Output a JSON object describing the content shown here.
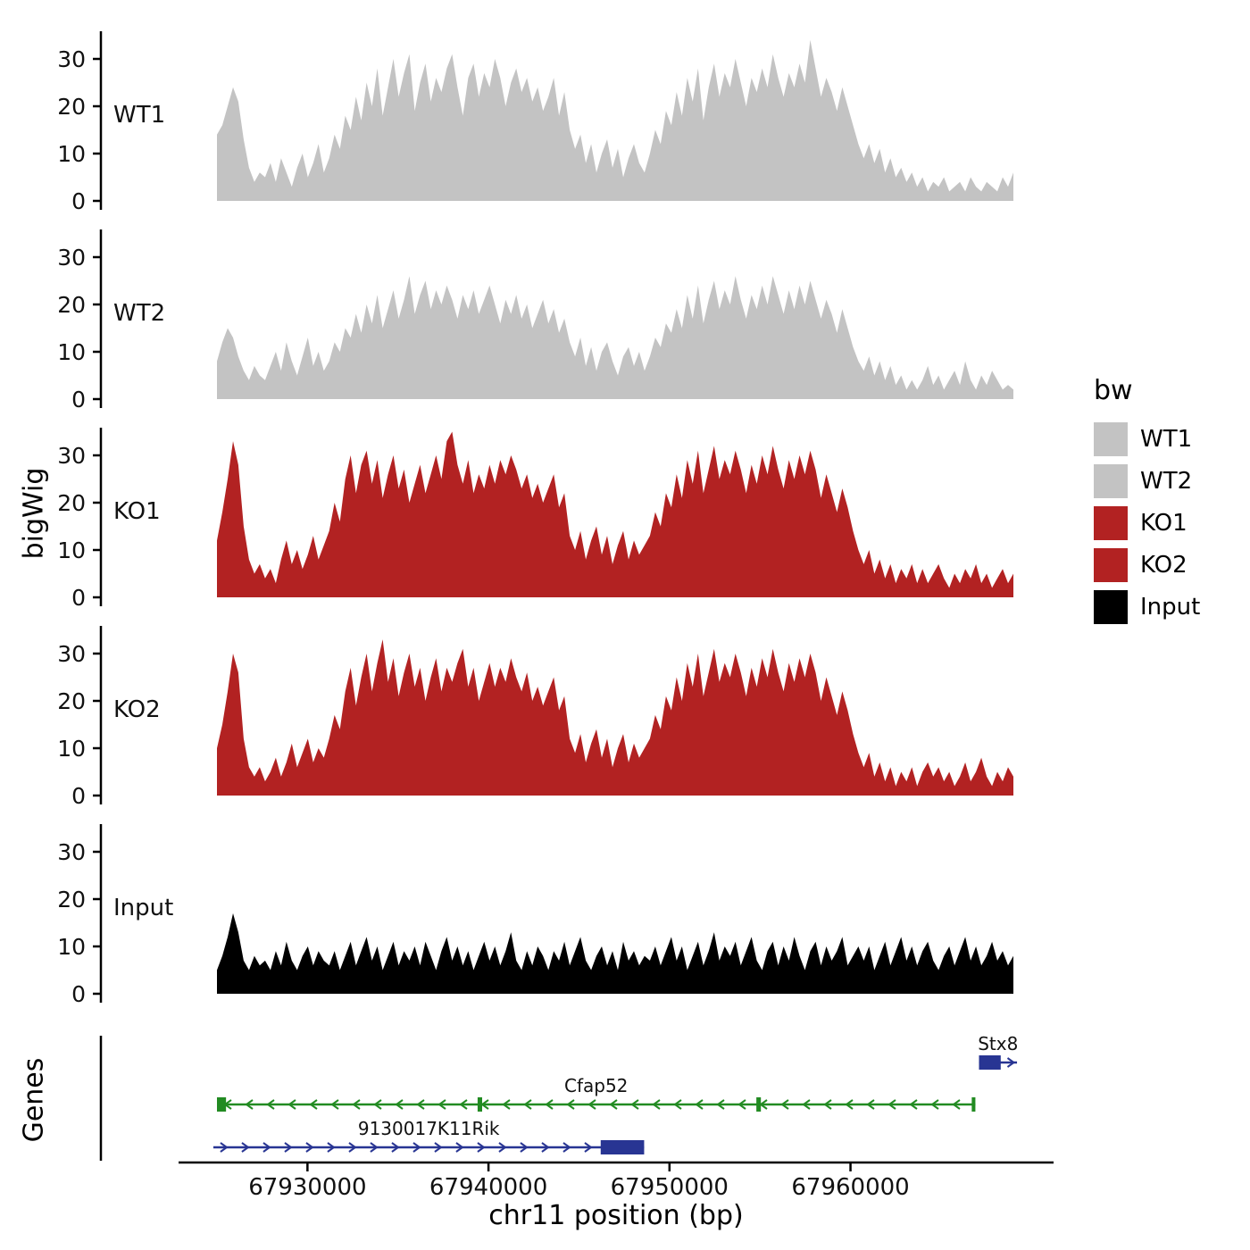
{
  "figure": {
    "y_axis_title": "bigWig",
    "genes_axis_title": "Genes",
    "x_axis_title": "chr11 position (bp)",
    "y_ticks": [
      0,
      10,
      20,
      30
    ],
    "x_ticks": [
      {
        "bp": 67930000,
        "label": "67930000"
      },
      {
        "bp": 67940000,
        "label": "67940000"
      },
      {
        "bp": 67950000,
        "label": "67950000"
      },
      {
        "bp": 67960000,
        "label": "67960000"
      }
    ]
  },
  "legend": {
    "title": "bw",
    "entries": [
      {
        "label": "WT1",
        "color": "#C3C3C3"
      },
      {
        "label": "WT2",
        "color": "#C3C3C3"
      },
      {
        "label": "KO1",
        "color": "#B22222"
      },
      {
        "label": "KO2",
        "color": "#B22222"
      },
      {
        "label": "Input",
        "color": "#000000"
      }
    ]
  },
  "chart_data": {
    "type": "area",
    "title": "",
    "xlabel": "chr11 position (bp)",
    "ylabel": "bigWig",
    "x_start": 67925000,
    "x_end": 67969000,
    "ylim": [
      0,
      35
    ],
    "x_ticks": [
      67930000,
      67940000,
      67950000,
      67960000
    ],
    "tracks": [
      {
        "name": "WT1",
        "color": "#C3C3C3",
        "values": [
          14,
          16,
          20,
          24,
          21,
          13,
          7,
          4,
          6,
          5,
          8,
          4,
          9,
          6,
          3,
          7,
          10,
          5,
          8,
          12,
          6,
          9,
          14,
          11,
          18,
          15,
          22,
          17,
          25,
          20,
          28,
          18,
          24,
          30,
          22,
          27,
          31,
          19,
          25,
          29,
          21,
          26,
          23,
          28,
          31,
          24,
          18,
          26,
          29,
          22,
          27,
          24,
          30,
          26,
          20,
          25,
          28,
          23,
          26,
          21,
          24,
          19,
          22,
          26,
          18,
          23,
          15,
          11,
          14,
          8,
          12,
          6,
          10,
          13,
          7,
          11,
          5,
          9,
          12,
          8,
          6,
          10,
          15,
          12,
          19,
          16,
          23,
          18,
          26,
          21,
          28,
          17,
          24,
          29,
          22,
          27,
          24,
          30,
          25,
          20,
          26,
          23,
          28,
          24,
          31,
          26,
          22,
          27,
          24,
          29,
          25,
          34,
          28,
          22,
          26,
          23,
          19,
          24,
          20,
          16,
          12,
          9,
          12,
          8,
          11,
          6,
          9,
          5,
          7,
          4,
          6,
          3,
          5,
          2,
          4,
          3,
          5,
          2,
          3,
          4,
          2,
          5,
          3,
          2,
          4,
          3,
          2,
          5,
          3,
          6
        ]
      },
      {
        "name": "WT2",
        "color": "#C3C3C3",
        "values": [
          8,
          12,
          15,
          13,
          9,
          6,
          4,
          7,
          5,
          4,
          7,
          10,
          6,
          12,
          8,
          5,
          9,
          13,
          7,
          10,
          6,
          8,
          12,
          10,
          15,
          13,
          18,
          14,
          20,
          16,
          22,
          15,
          19,
          23,
          17,
          21,
          26,
          18,
          22,
          25,
          19,
          23,
          20,
          24,
          21,
          17,
          22,
          19,
          23,
          18,
          21,
          24,
          20,
          16,
          21,
          18,
          22,
          17,
          20,
          15,
          18,
          21,
          16,
          19,
          14,
          17,
          12,
          9,
          13,
          7,
          11,
          6,
          10,
          12,
          8,
          5,
          9,
          11,
          7,
          10,
          6,
          9,
          13,
          11,
          16,
          14,
          19,
          15,
          22,
          17,
          24,
          16,
          21,
          25,
          19,
          23,
          20,
          26,
          21,
          17,
          22,
          19,
          24,
          20,
          26,
          22,
          18,
          23,
          19,
          24,
          20,
          25,
          21,
          17,
          21,
          18,
          14,
          19,
          15,
          11,
          8,
          6,
          9,
          5,
          8,
          4,
          7,
          3,
          5,
          2,
          4,
          2,
          4,
          7,
          3,
          5,
          2,
          4,
          6,
          3,
          8,
          4,
          2,
          5,
          3,
          6,
          4,
          2,
          3,
          2
        ]
      },
      {
        "name": "KO1",
        "color": "#B22222",
        "values": [
          12,
          18,
          25,
          33,
          28,
          15,
          8,
          5,
          7,
          4,
          6,
          3,
          8,
          12,
          7,
          10,
          6,
          9,
          13,
          8,
          11,
          14,
          20,
          16,
          25,
          30,
          22,
          28,
          31,
          24,
          29,
          21,
          26,
          30,
          23,
          27,
          20,
          24,
          28,
          22,
          26,
          30,
          25,
          33,
          35,
          28,
          24,
          29,
          22,
          26,
          23,
          28,
          24,
          29,
          26,
          30,
          27,
          23,
          26,
          21,
          24,
          20,
          23,
          26,
          19,
          22,
          13,
          10,
          14,
          8,
          12,
          15,
          9,
          13,
          7,
          11,
          14,
          8,
          12,
          9,
          11,
          13,
          18,
          15,
          22,
          19,
          26,
          21,
          29,
          24,
          31,
          22,
          27,
          32,
          25,
          29,
          26,
          31,
          27,
          22,
          28,
          24,
          30,
          26,
          32,
          27,
          23,
          29,
          25,
          30,
          26,
          31,
          27,
          21,
          26,
          22,
          18,
          23,
          19,
          14,
          10,
          7,
          10,
          5,
          8,
          4,
          7,
          3,
          6,
          4,
          7,
          3,
          6,
          3,
          5,
          7,
          4,
          2,
          5,
          3,
          6,
          4,
          7,
          3,
          5,
          2,
          4,
          6,
          3,
          5
        ]
      },
      {
        "name": "KO2",
        "color": "#B22222",
        "values": [
          10,
          15,
          22,
          30,
          26,
          12,
          6,
          4,
          6,
          3,
          5,
          8,
          4,
          7,
          11,
          6,
          9,
          12,
          7,
          10,
          8,
          12,
          17,
          14,
          22,
          27,
          19,
          25,
          30,
          22,
          28,
          33,
          24,
          29,
          21,
          26,
          30,
          23,
          27,
          20,
          25,
          29,
          22,
          27,
          24,
          28,
          31,
          23,
          27,
          20,
          24,
          28,
          23,
          27,
          24,
          29,
          25,
          22,
          26,
          20,
          23,
          19,
          22,
          25,
          18,
          21,
          12,
          9,
          13,
          7,
          11,
          14,
          8,
          12,
          6,
          10,
          13,
          7,
          11,
          8,
          10,
          12,
          17,
          14,
          21,
          18,
          25,
          20,
          28,
          23,
          30,
          21,
          26,
          31,
          24,
          28,
          25,
          30,
          26,
          21,
          27,
          23,
          29,
          25,
          31,
          26,
          22,
          28,
          24,
          29,
          25,
          30,
          26,
          20,
          25,
          21,
          17,
          22,
          18,
          13,
          9,
          6,
          9,
          4,
          7,
          3,
          6,
          2,
          5,
          3,
          6,
          2,
          5,
          7,
          4,
          6,
          3,
          5,
          2,
          4,
          7,
          3,
          5,
          8,
          4,
          2,
          5,
          3,
          6,
          4
        ]
      },
      {
        "name": "Input",
        "color": "#000000",
        "values": [
          5,
          8,
          12,
          17,
          13,
          7,
          5,
          8,
          6,
          7,
          5,
          9,
          6,
          11,
          7,
          5,
          8,
          10,
          6,
          9,
          7,
          6,
          9,
          5,
          8,
          11,
          6,
          9,
          12,
          7,
          10,
          5,
          8,
          11,
          6,
          9,
          7,
          10,
          6,
          11,
          8,
          5,
          9,
          12,
          7,
          10,
          6,
          9,
          5,
          8,
          11,
          7,
          10,
          6,
          9,
          13,
          7,
          5,
          9,
          6,
          10,
          8,
          5,
          9,
          7,
          11,
          6,
          9,
          12,
          7,
          5,
          8,
          10,
          6,
          9,
          5,
          11,
          7,
          9,
          6,
          8,
          7,
          10,
          6,
          9,
          12,
          7,
          10,
          5,
          8,
          11,
          6,
          9,
          13,
          7,
          10,
          8,
          11,
          6,
          9,
          12,
          7,
          5,
          9,
          11,
          6,
          10,
          7,
          12,
          8,
          5,
          9,
          11,
          6,
          10,
          7,
          9,
          12,
          6,
          8,
          10,
          7,
          10,
          5,
          8,
          11,
          6,
          9,
          12,
          7,
          10,
          6,
          9,
          11,
          7,
          5,
          8,
          10,
          6,
          9,
          12,
          7,
          10,
          6,
          8,
          11,
          7,
          9,
          6,
          8
        ]
      }
    ],
    "genes": [
      {
        "name": "Stx8",
        "color": "#283593",
        "strand": "+",
        "row": 0,
        "start": 67967100,
        "end": 67969200,
        "exons": [
          [
            67967100,
            67968300
          ]
        ]
      },
      {
        "name": "Cfap52",
        "color": "#228B22",
        "strand": "-",
        "row": 1,
        "start": 67925000,
        "end": 67966900,
        "exons": [
          [
            67925000,
            67925500
          ],
          [
            67939400,
            67939650
          ],
          [
            67954800,
            67955050
          ],
          [
            67966700,
            67966900
          ]
        ]
      },
      {
        "name": "9130017K11Rik",
        "color": "#283593",
        "strand": "+",
        "row": 2,
        "start": 67924800,
        "end": 67948600,
        "exons": [
          [
            67946200,
            67948600
          ]
        ]
      }
    ]
  }
}
